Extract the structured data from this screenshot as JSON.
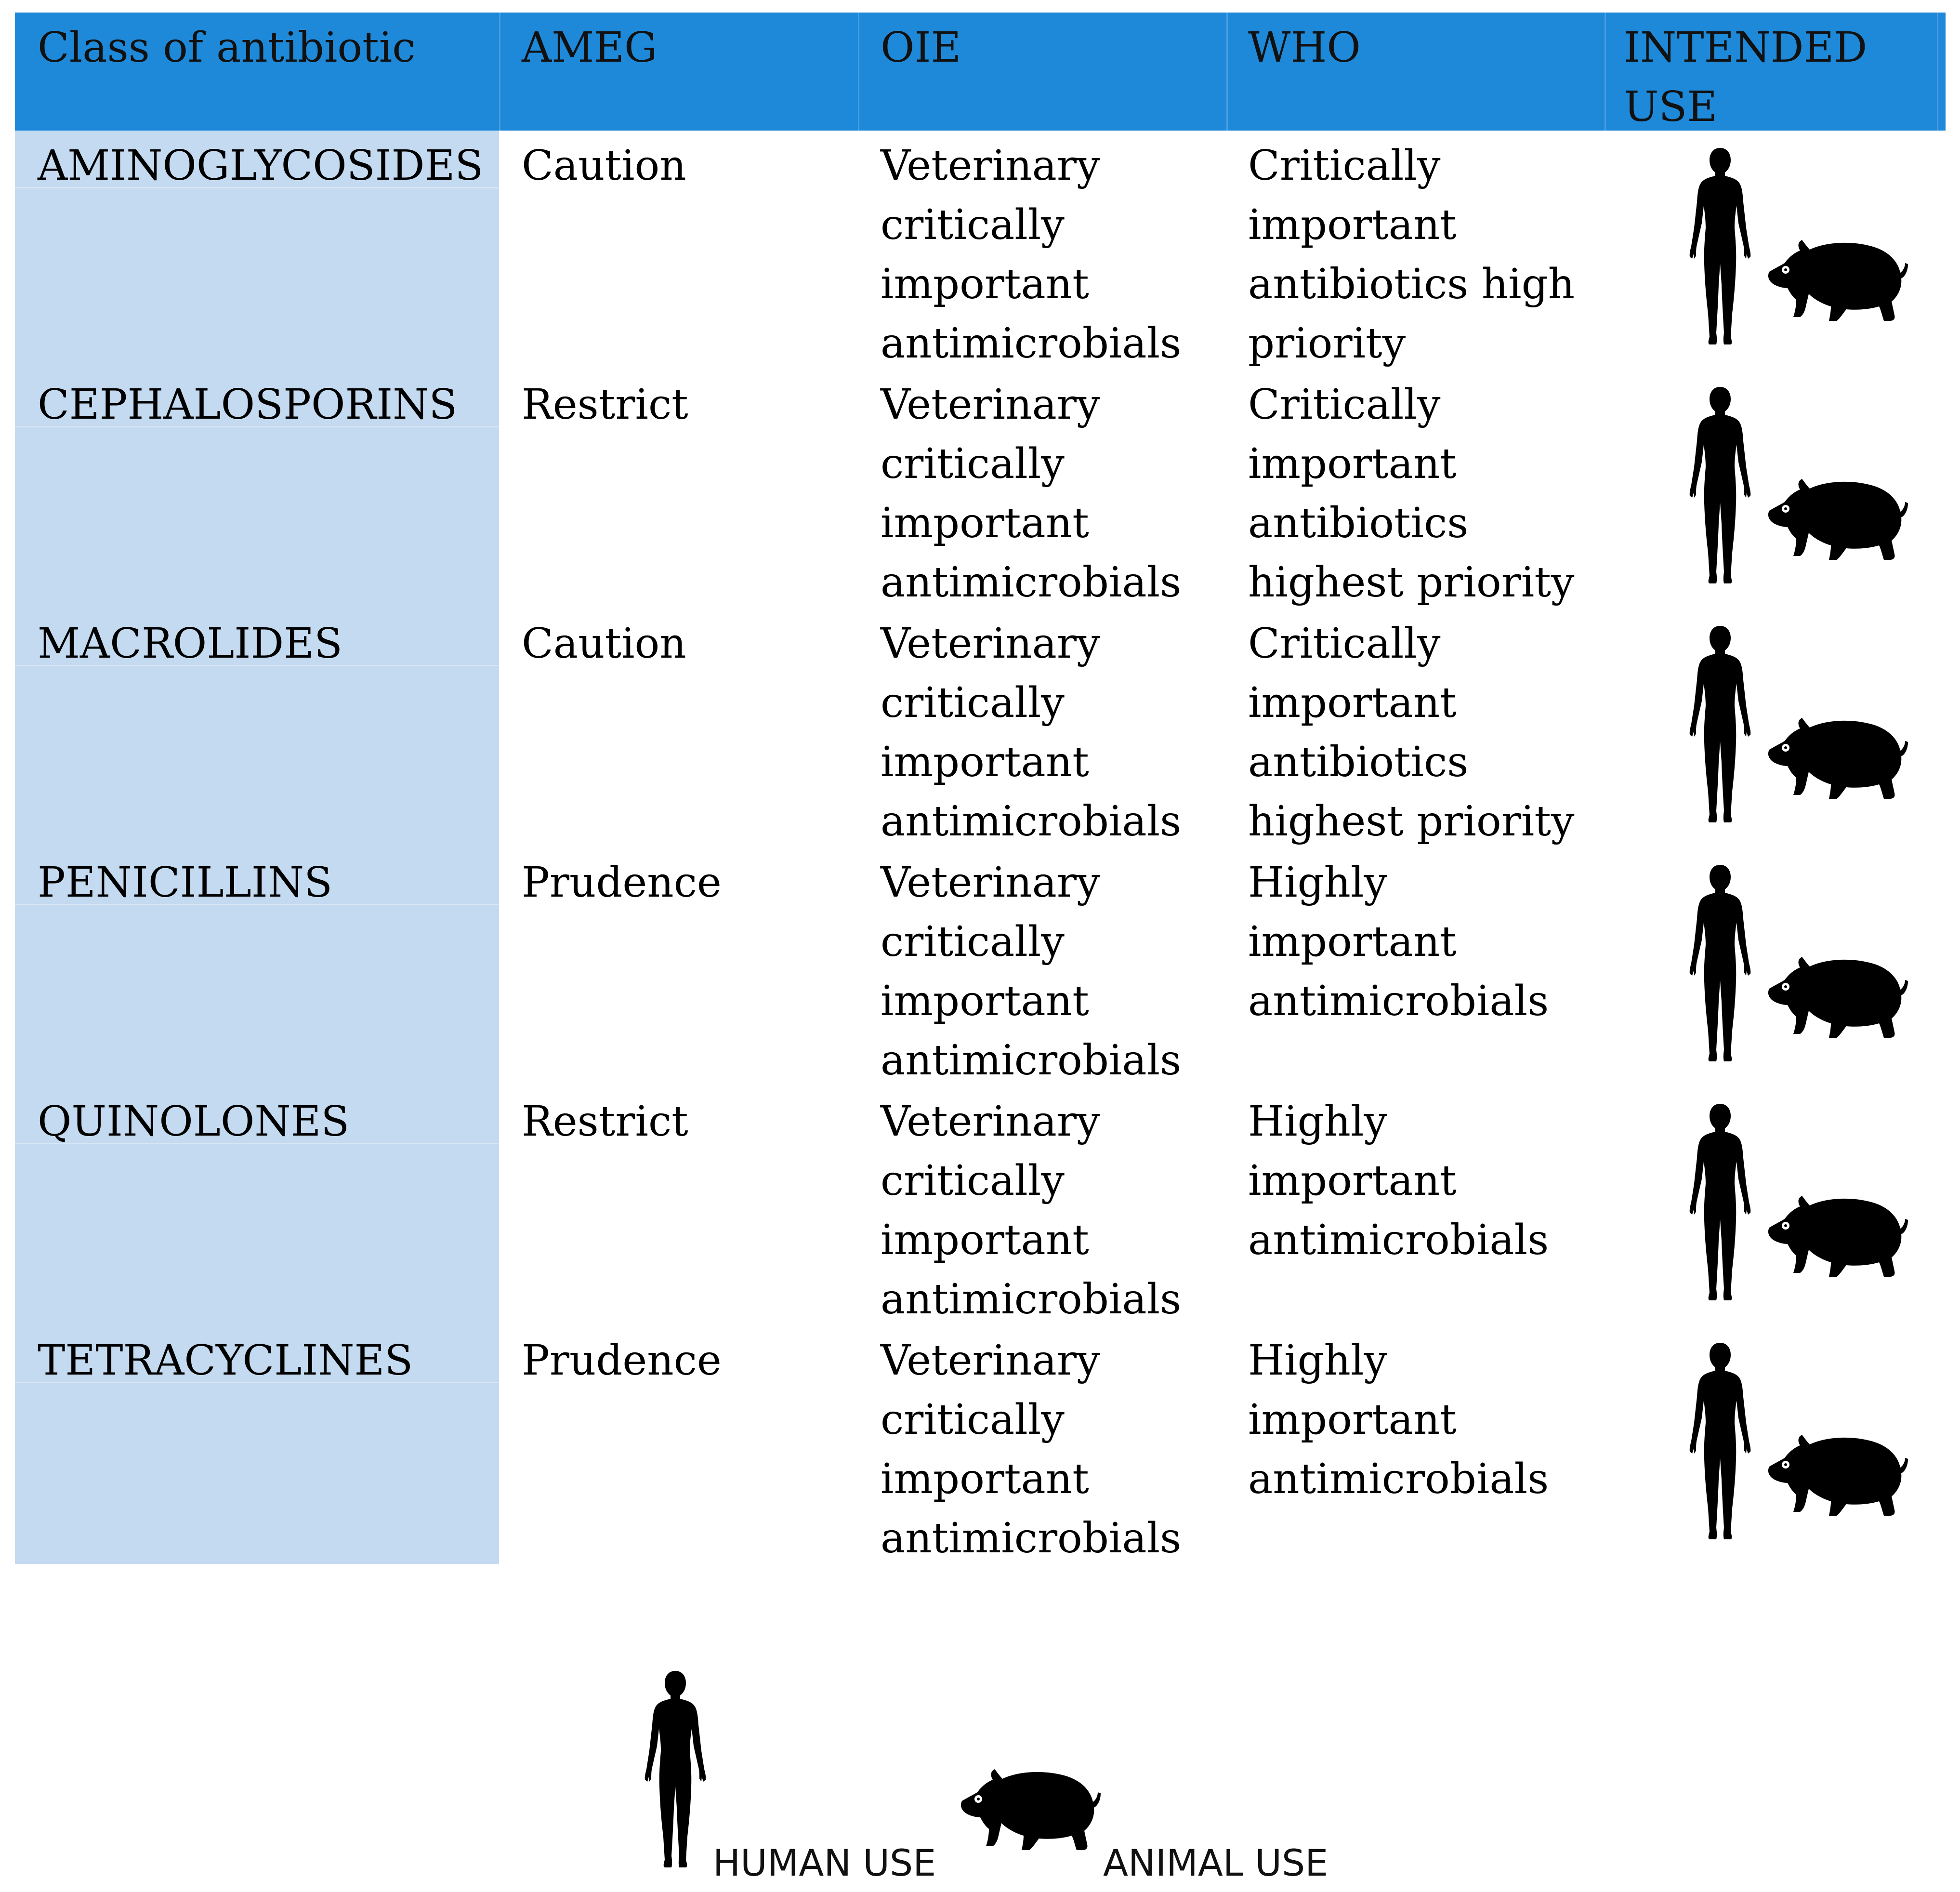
{
  "header": {
    "class": "Class of antibiotic",
    "ameg": "AMEG",
    "oie": "OIE",
    "who": "WHO",
    "use": "INTENDED\nUSE"
  },
  "rows": [
    {
      "class": "AMINOGLYCOSIDES",
      "ameg": "Caution",
      "oie": "Veterinary\ncritically\nimportant\nantimicrobials",
      "who": "Critically\nimportant\nantibiotics high\npriority"
    },
    {
      "class": "CEPHALOSPORINS",
      "ameg": "Restrict",
      "oie": "Veterinary\ncritically\nimportant\nantimicrobials",
      "who": "Critically\nimportant\nantibiotics\nhighest priority"
    },
    {
      "class": "MACROLIDES",
      "ameg": "Caution",
      "oie": "Veterinary\ncritically\nimportant\nantimicrobials",
      "who": "Critically\nimportant\nantibiotics\nhighest priority"
    },
    {
      "class": "PENICILLINS",
      "ameg": "Prudence",
      "oie": "Veterinary\ncritically\nimportant\nantimicrobials",
      "who": "Highly\nimportant\nantimicrobials"
    },
    {
      "class": "QUINOLONES",
      "ameg": "Restrict",
      "oie": "Veterinary\ncritically\nimportant\nantimicrobials",
      "who": "Highly\nimportant\nantimicrobials"
    },
    {
      "class": "TETRACYCLINES",
      "ameg": "Prudence",
      "oie": "Veterinary\ncritically\nimportant\nantimicrobials",
      "who": "Highly\nimportant\nantimicrobials"
    }
  ],
  "legend": {
    "human": "HUMAN USE",
    "animal": "ANIMAL USE"
  },
  "icons": {
    "human": "human-silhouette-icon",
    "animal": "pig-silhouette-icon"
  },
  "colors": {
    "header": "#1f89d9",
    "first_column": "#c4daf0"
  }
}
